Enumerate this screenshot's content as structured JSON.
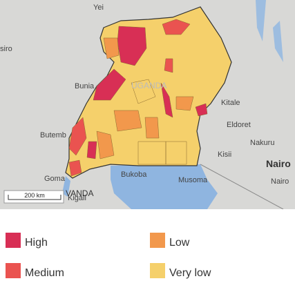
{
  "map": {
    "places": [
      "Yei",
      "siro",
      "Bunia",
      "UGANDA",
      "Kitale",
      "Eldoret",
      "Butemb",
      "Nakuru",
      "Kisii",
      "Nairo",
      "Nairo",
      "Goma",
      "Kigali",
      "VANDA",
      "Bukoba",
      "Musoma"
    ],
    "scale": "200 km"
  },
  "legend": [
    {
      "label": "High",
      "color": "#d82f55"
    },
    {
      "label": "Low",
      "color": "#f2984c"
    },
    {
      "label": "Medium",
      "color": "#ea5350"
    },
    {
      "label": "Very low",
      "color": "#f5d06b"
    }
  ]
}
